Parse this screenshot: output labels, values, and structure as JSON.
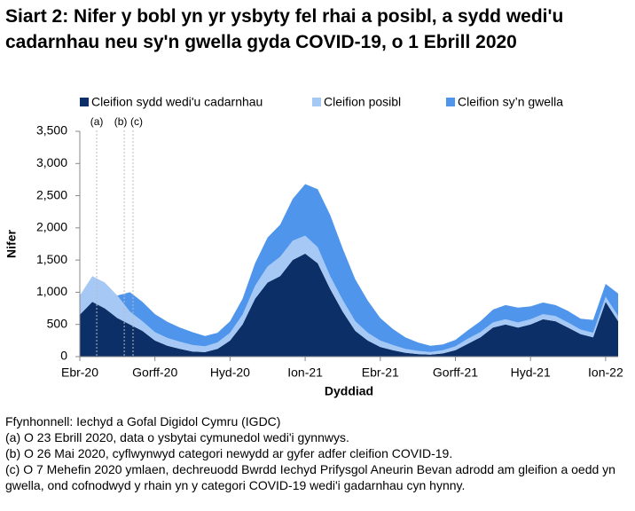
{
  "chart_data": {
    "type": "stacked_area",
    "title": "Siart 2: Nifer y bobl yn yr ysbyty fel rhai a posibl, a sydd wedi'u cadarnhau neu sy'n gwella gyda COVID-19, o 1 Ebrill 2020",
    "xlabel": "Dyddiad",
    "ylabel": "Nifer",
    "categories": [
      "Ebr-20",
      null,
      null,
      null,
      null,
      null,
      "Gorff-20",
      null,
      null,
      null,
      null,
      null,
      "Hyd-20",
      null,
      null,
      null,
      null,
      null,
      "Ion-21",
      null,
      null,
      null,
      null,
      null,
      "Ebr-21",
      null,
      null,
      null,
      null,
      null,
      "Gorff-21",
      null,
      null,
      null,
      null,
      null,
      "Hyd-21",
      null,
      null,
      null,
      null,
      null,
      "Ion-22",
      null
    ],
    "series": [
      {
        "name": "Cleifion sydd wedi'u cadarnhau",
        "color": "#0b2f66",
        "values": [
          650,
          850,
          750,
          600,
          500,
          400,
          250,
          170,
          120,
          80,
          70,
          120,
          250,
          500,
          900,
          1150,
          1250,
          1500,
          1600,
          1450,
          1050,
          700,
          400,
          250,
          150,
          100,
          60,
          40,
          30,
          50,
          100,
          200,
          300,
          450,
          500,
          450,
          500,
          580,
          550,
          450,
          350,
          300,
          850,
          550
        ]
      },
      {
        "name": "Cleifion posibl",
        "color": "#a6c8f5",
        "values": [
          300,
          400,
          400,
          350,
          200,
          150,
          130,
          120,
          110,
          100,
          90,
          100,
          120,
          150,
          200,
          250,
          300,
          300,
          280,
          250,
          200,
          180,
          150,
          120,
          100,
          80,
          60,
          50,
          40,
          50,
          60,
          80,
          80,
          80,
          80,
          80,
          80,
          80,
          80,
          80,
          70,
          70,
          80,
          80
        ]
      },
      {
        "name": "Cleifion sy’n gwella",
        "color": "#4f95ec",
        "values": [
          0,
          0,
          0,
          0,
          300,
          300,
          280,
          250,
          220,
          200,
          160,
          150,
          180,
          250,
          350,
          450,
          500,
          650,
          800,
          900,
          950,
          800,
          650,
          500,
          350,
          250,
          180,
          130,
          100,
          90,
          100,
          130,
          170,
          200,
          220,
          230,
          200,
          180,
          170,
          180,
          170,
          200,
          200,
          350
        ]
      }
    ],
    "ylim": [
      0,
      3500
    ],
    "yticks": [
      0,
      500,
      {
        "value": 1000,
        "label": "1,000"
      },
      {
        "value": 1500,
        "label": "1,500"
      },
      {
        "value": 2000,
        "label": "2,000"
      },
      {
        "value": 2500,
        "label": "2,500"
      },
      {
        "value": 3000,
        "label": "3,000"
      },
      {
        "value": 3500,
        "label": "3,500"
      }
    ],
    "annotations": [
      "(a)",
      "(b)",
      "(c)"
    ],
    "notes": [
      "Ffynhonnell: Iechyd a Gofal Digidol Cymru (IGDC)",
      "(a) O 23 Ebrill 2020, data o ysbytai cymunedol wedi'i gynnwys.",
      "(b) O 26 Mai 2020, cyflwynwyd categori newydd ar gyfer adfer cleifion COVID-19.",
      "(c) O 7 Mehefin 2020 ymlaen, dechreuodd Bwrdd Iechyd Prifysgol Aneurin Bevan adrodd am gleifion a oedd yn gwella, ond cofnodwyd y rhain yn y categori COVID-19 wedi'i gadarnhau cyn hynny."
    ]
  }
}
